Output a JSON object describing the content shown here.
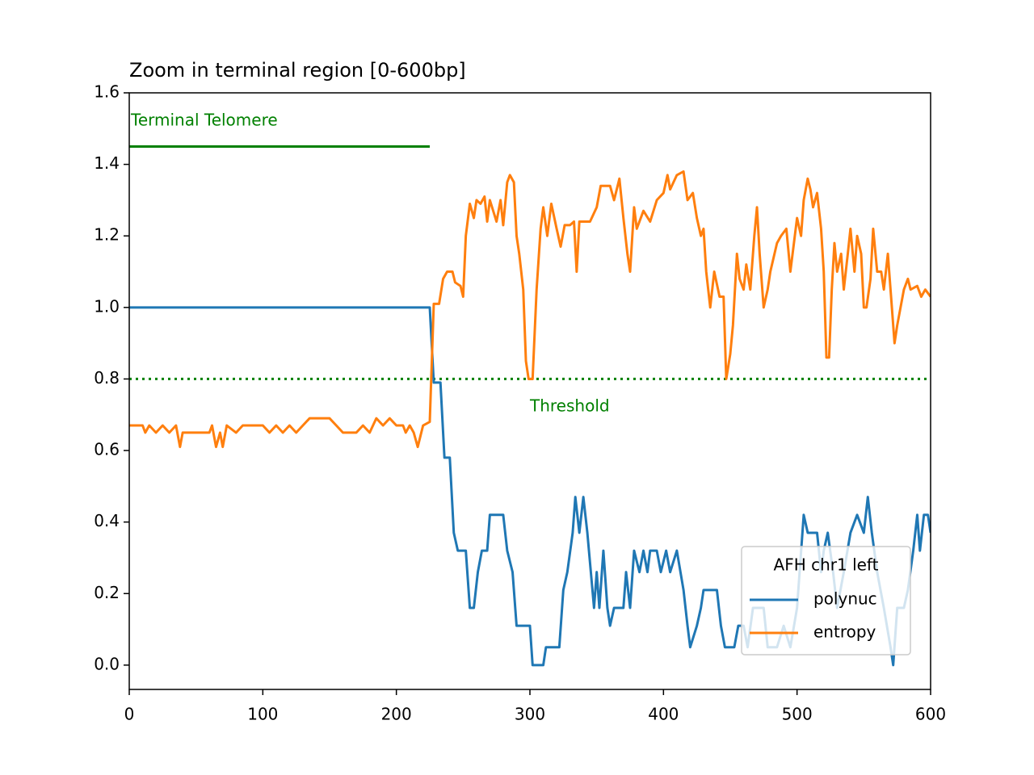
{
  "chart_data": {
    "type": "line",
    "title": "Zoom in terminal region [0-600bp]",
    "xlim": [
      0,
      600
    ],
    "ylim": [
      -0.068,
      1.6
    ],
    "xticks": [
      0,
      100,
      200,
      300,
      400,
      500,
      600
    ],
    "yticks": [
      {
        "value": 0,
        "label": "0.0"
      },
      0.2,
      0.4,
      0.6,
      0.8,
      {
        "value": 1,
        "label": "1.0"
      },
      1.2,
      1.4,
      1.6
    ],
    "legend_title": "AFH chr1 left",
    "legend_position": "lower right",
    "telomere": {
      "label": "Terminal Telomere",
      "y": 1.45,
      "x": [
        0,
        225
      ],
      "color": "#008000"
    },
    "threshold": {
      "label": "Threshold",
      "y": 0.8,
      "color": "#008000"
    },
    "series": [
      {
        "name": "polynuc",
        "color": "#1f77b4",
        "x": [
          0,
          225,
          228,
          233,
          236,
          240,
          243,
          246,
          252,
          255,
          258,
          261,
          264,
          268,
          270,
          280,
          283,
          287,
          290,
          300,
          302,
          310,
          312,
          322,
          325,
          328,
          332,
          334,
          337,
          340,
          343,
          348,
          350,
          352,
          355,
          358,
          360,
          363,
          370,
          372,
          375,
          378,
          382,
          385,
          388,
          390,
          395,
          398,
          402,
          405,
          410,
          415,
          418,
          420,
          425,
          428,
          430,
          440,
          443,
          446,
          453,
          456,
          460,
          463,
          467,
          475,
          478,
          485,
          490,
          495,
          500,
          505,
          508,
          515,
          518,
          520,
          523,
          527,
          530,
          535,
          540,
          545,
          550,
          553,
          556,
          560,
          565,
          570,
          572,
          575,
          580,
          583,
          587,
          590,
          592,
          595,
          598,
          600
        ],
        "values": [
          1,
          1,
          0.79,
          0.79,
          0.58,
          0.58,
          0.37,
          0.32,
          0.32,
          0.16,
          0.16,
          0.26,
          0.32,
          0.32,
          0.42,
          0.42,
          0.32,
          0.26,
          0.11,
          0.11,
          0,
          0,
          0.05,
          0.05,
          0.21,
          0.26,
          0.37,
          0.47,
          0.37,
          0.47,
          0.37,
          0.16,
          0.26,
          0.16,
          0.32,
          0.16,
          0.11,
          0.16,
          0.16,
          0.26,
          0.16,
          0.32,
          0.26,
          0.32,
          0.26,
          0.32,
          0.32,
          0.26,
          0.32,
          0.26,
          0.32,
          0.21,
          0.11,
          0.05,
          0.11,
          0.16,
          0.21,
          0.21,
          0.11,
          0.05,
          0.05,
          0.11,
          0.11,
          0.05,
          0.16,
          0.16,
          0.05,
          0.05,
          0.11,
          0.05,
          0.16,
          0.42,
          0.37,
          0.37,
          0.26,
          0.32,
          0.37,
          0.26,
          0.16,
          0.26,
          0.37,
          0.42,
          0.37,
          0.47,
          0.37,
          0.26,
          0.16,
          0.05,
          0,
          0.16,
          0.16,
          0.21,
          0.32,
          0.42,
          0.32,
          0.42,
          0.42,
          0.37
        ]
      },
      {
        "name": "entropy",
        "color": "#ff7f0e",
        "x": [
          0,
          10,
          12,
          15,
          20,
          25,
          30,
          35,
          38,
          40,
          60,
          62,
          65,
          68,
          70,
          73,
          80,
          85,
          100,
          105,
          110,
          115,
          120,
          125,
          130,
          135,
          150,
          155,
          160,
          170,
          175,
          180,
          185,
          190,
          195,
          200,
          205,
          207,
          210,
          213,
          216,
          220,
          225,
          228,
          232,
          235,
          238,
          242,
          244,
          248,
          250,
          252,
          255,
          258,
          260,
          263,
          266,
          268,
          270,
          275,
          278,
          280,
          283,
          285,
          288,
          290,
          292,
          295,
          297,
          299,
          302,
          305,
          308,
          310,
          313,
          316,
          320,
          323,
          326,
          330,
          333,
          335,
          337,
          345,
          350,
          353,
          360,
          363,
          367,
          370,
          373,
          375,
          378,
          380,
          385,
          390,
          395,
          400,
          403,
          405,
          410,
          415,
          418,
          422,
          425,
          428,
          430,
          432,
          435,
          438,
          442,
          445,
          447,
          450,
          452,
          455,
          457,
          460,
          462,
          465,
          468,
          470,
          472,
          475,
          478,
          480,
          485,
          488,
          492,
          495,
          500,
          503,
          505,
          508,
          510,
          512,
          515,
          518,
          520,
          522,
          524,
          526,
          528,
          530,
          533,
          535,
          538,
          540,
          543,
          545,
          548,
          550,
          552,
          555,
          557,
          560,
          563,
          565,
          568,
          570,
          573,
          575,
          580,
          583,
          585,
          590,
          593,
          596,
          600
        ],
        "values": [
          0.67,
          0.67,
          0.65,
          0.67,
          0.65,
          0.67,
          0.65,
          0.67,
          0.61,
          0.65,
          0.65,
          0.67,
          0.61,
          0.65,
          0.61,
          0.67,
          0.65,
          0.67,
          0.67,
          0.65,
          0.67,
          0.65,
          0.67,
          0.65,
          0.67,
          0.69,
          0.69,
          0.67,
          0.65,
          0.65,
          0.67,
          0.65,
          0.69,
          0.67,
          0.69,
          0.67,
          0.67,
          0.65,
          0.67,
          0.65,
          0.61,
          0.67,
          0.68,
          1.01,
          1.01,
          1.08,
          1.1,
          1.1,
          1.07,
          1.06,
          1.03,
          1.2,
          1.29,
          1.25,
          1.3,
          1.29,
          1.31,
          1.24,
          1.3,
          1.24,
          1.3,
          1.23,
          1.35,
          1.37,
          1.35,
          1.2,
          1.15,
          1.05,
          0.85,
          0.8,
          0.8,
          1.05,
          1.22,
          1.28,
          1.2,
          1.29,
          1.22,
          1.17,
          1.23,
          1.23,
          1.24,
          1.1,
          1.24,
          1.24,
          1.28,
          1.34,
          1.34,
          1.3,
          1.36,
          1.25,
          1.15,
          1.1,
          1.28,
          1.22,
          1.27,
          1.24,
          1.3,
          1.32,
          1.37,
          1.33,
          1.37,
          1.38,
          1.3,
          1.32,
          1.25,
          1.2,
          1.22,
          1.1,
          1,
          1.1,
          1.03,
          1.03,
          0.8,
          0.87,
          0.95,
          1.15,
          1.08,
          1.05,
          1.12,
          1.05,
          1.2,
          1.28,
          1.15,
          1,
          1.05,
          1.1,
          1.18,
          1.2,
          1.22,
          1.1,
          1.25,
          1.2,
          1.3,
          1.36,
          1.33,
          1.28,
          1.32,
          1.22,
          1.1,
          0.86,
          0.86,
          1.05,
          1.18,
          1.1,
          1.15,
          1.05,
          1.15,
          1.22,
          1.1,
          1.2,
          1.15,
          1,
          1,
          1.08,
          1.22,
          1.1,
          1.1,
          1.05,
          1.15,
          1.05,
          0.9,
          0.95,
          1.05,
          1.08,
          1.05,
          1.06,
          1.03,
          1.05,
          1.03
        ]
      }
    ]
  }
}
